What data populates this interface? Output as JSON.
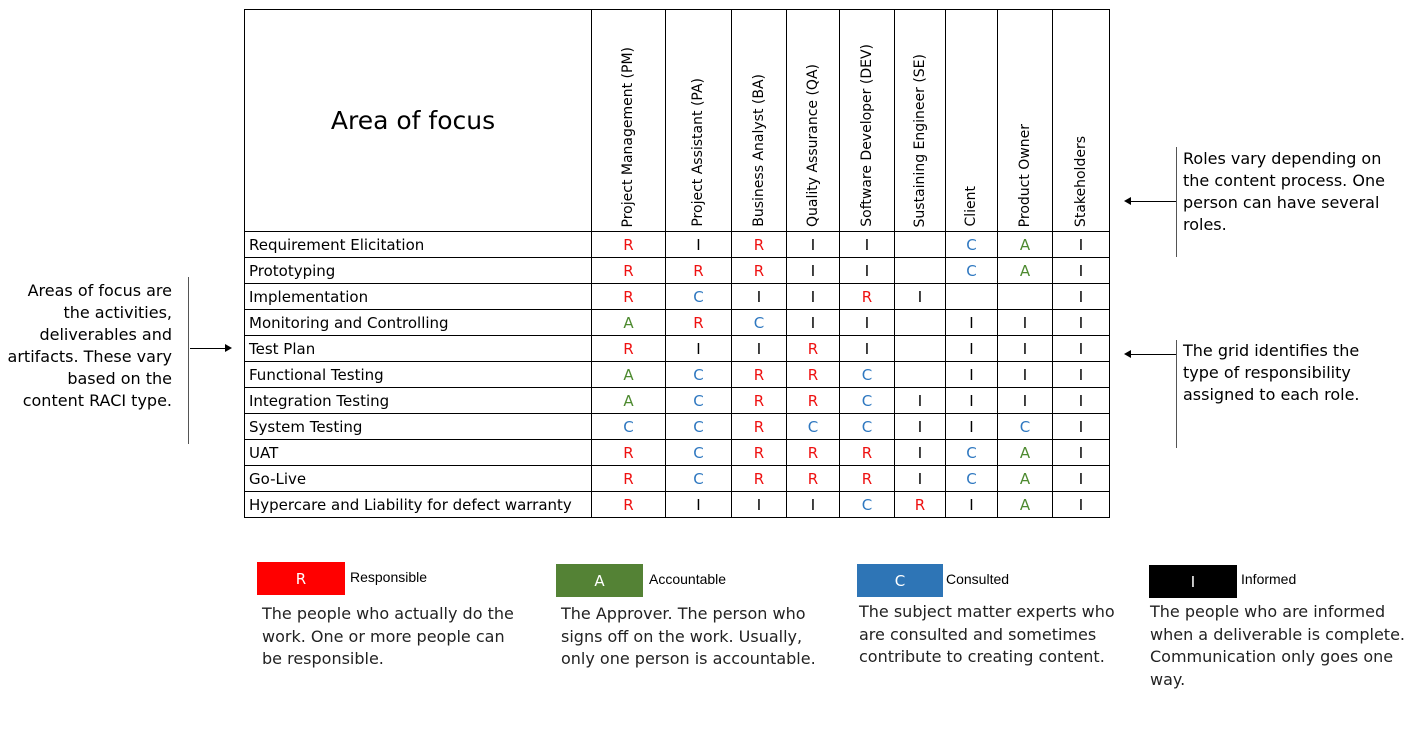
{
  "table": {
    "corner_label": "Area of focus",
    "roles": [
      "Project Management (PM)",
      "Project Assistant (PA)",
      "Business Analyst (BA)",
      "Quality Assurance (QA)",
      "Software Developer (DEV)",
      "Sustaining Engineer (SE)",
      "Client",
      "Product Owner",
      "Stakeholders"
    ],
    "rows": [
      {
        "label": "Requirement Elicitation",
        "cells": [
          "R",
          "I",
          "R",
          "I",
          "I",
          "",
          "C",
          "A",
          "I"
        ]
      },
      {
        "label": "Prototyping",
        "cells": [
          "R",
          "R",
          "R",
          "I",
          "I",
          "",
          "C",
          "A",
          "I"
        ]
      },
      {
        "label": "Implementation",
        "cells": [
          "R",
          "C",
          "I",
          "I",
          "R",
          "I",
          "",
          "",
          "I"
        ]
      },
      {
        "label": "Monitoring and Controlling",
        "cells": [
          "A",
          "R",
          "C",
          "I",
          "I",
          "",
          "I",
          "I",
          "I"
        ]
      },
      {
        "label": "Test Plan",
        "cells": [
          "R",
          "I",
          "I",
          "R",
          "I",
          "",
          "I",
          "I",
          "I"
        ]
      },
      {
        "label": "Functional Testing",
        "cells": [
          "A",
          "C",
          "R",
          "R",
          "C",
          "",
          "I",
          "I",
          "I"
        ]
      },
      {
        "label": "Integration Testing",
        "cells": [
          "A",
          "C",
          "R",
          "R",
          "C",
          "I",
          "I",
          "I",
          "I"
        ]
      },
      {
        "label": "System Testing",
        "cells": [
          "C",
          "C",
          "R",
          "C",
          "C",
          "I",
          "I",
          "C",
          "I"
        ]
      },
      {
        "label": "UAT",
        "cells": [
          "R",
          "C",
          "R",
          "R",
          "R",
          "I",
          "C",
          "A",
          "I"
        ]
      },
      {
        "label": "Go-Live",
        "cells": [
          "R",
          "C",
          "R",
          "R",
          "R",
          "I",
          "C",
          "A",
          "I"
        ]
      },
      {
        "label": "Hypercare and Liability for defect warranty",
        "cells": [
          "R",
          "I",
          "I",
          "I",
          "C",
          "R",
          "I",
          "A",
          "I"
        ]
      }
    ]
  },
  "notes": {
    "left": "Areas of focus are the activities, deliverables and artifacts. These vary based on the content RACI type.",
    "right_top": "Roles vary depending on the content process. One person can have several roles.",
    "right_bottom": "The grid identifies the type of responsibility assigned to each role."
  },
  "legend": [
    {
      "letter": "R",
      "title": "Responsible",
      "color": "#ff0000",
      "description": "The people who actually do the work. One or more people can be responsible."
    },
    {
      "letter": "A",
      "title": "Accountable",
      "color": "#548235",
      "description": "The Approver. The person who signs off on the work. Usually, only one person is accountable."
    },
    {
      "letter": "C",
      "title": "Consulted",
      "color": "#2e75b6",
      "description": "The subject matter experts who are consulted and sometimes contribute to creating content."
    },
    {
      "letter": "I",
      "title": "Informed",
      "color": "#000000",
      "description": "The people who are informed when a deliverable is complete. Communication only goes one way."
    }
  ]
}
